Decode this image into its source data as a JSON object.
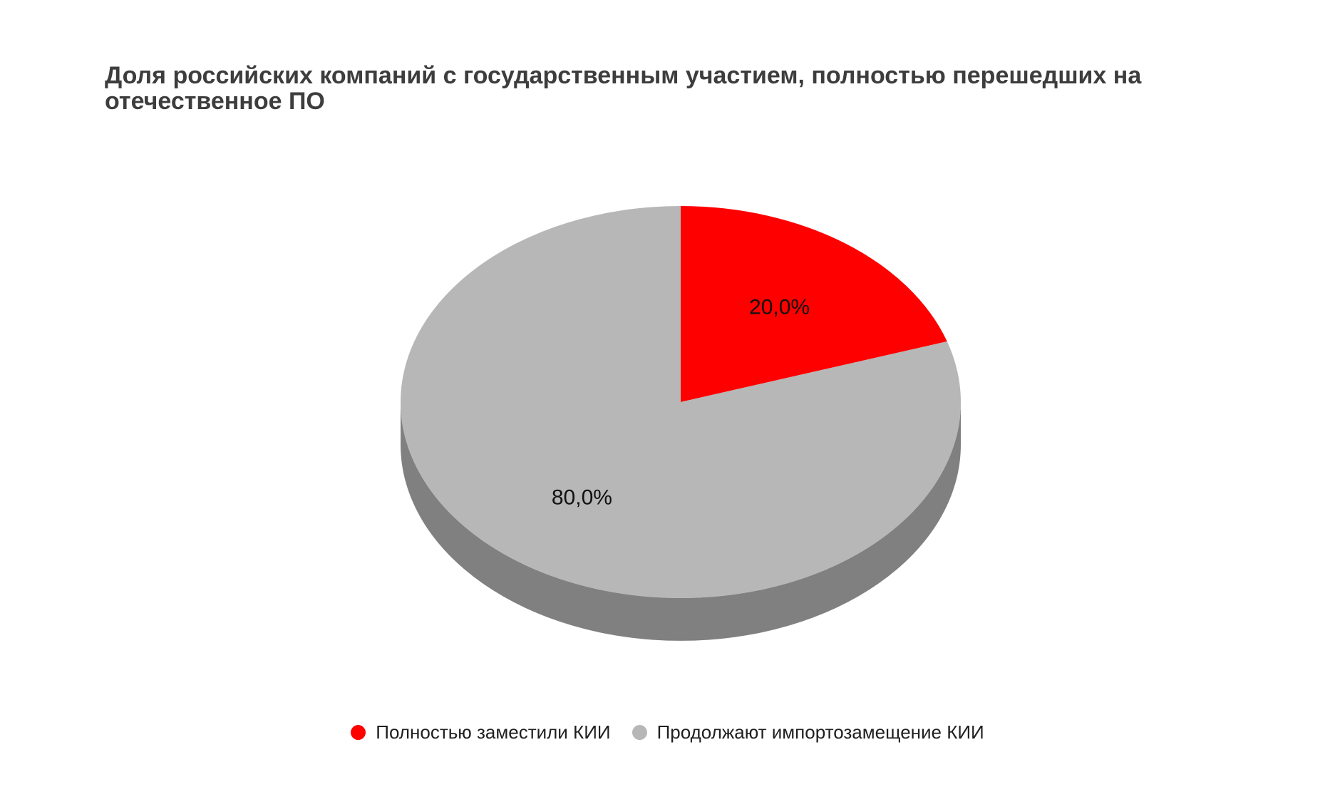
{
  "chart_data": {
    "type": "pie",
    "title": "Доля российских компаний с государственным участием, полностью перешедших на отечественное ПО",
    "categories": [
      "Полностью заместили КИИ",
      "Продолжают импортозамещение КИИ"
    ],
    "values": [
      20.0,
      80.0
    ],
    "data_labels": [
      "20,0%",
      "80,0%"
    ],
    "colors": [
      "#ff0000",
      "#b7b7b7"
    ],
    "side_color": "#808080",
    "style": "3d",
    "legend_position": "bottom"
  }
}
